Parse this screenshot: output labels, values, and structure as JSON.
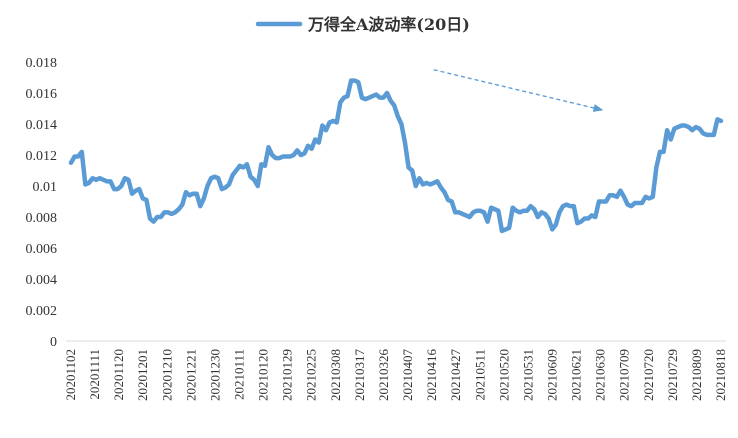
{
  "chart_data": {
    "type": "line",
    "title": "",
    "xlabel": "",
    "ylabel": "",
    "ylim": [
      0,
      0.018
    ],
    "y_ticks": [
      "0",
      "0.002",
      "0.004",
      "0.006",
      "0.008",
      "0.01",
      "0.012",
      "0.014",
      "0.016",
      "0.018"
    ],
    "x_tick_labels": [
      "20201102",
      "20201111",
      "20201120",
      "20201201",
      "20201210",
      "20201221",
      "20201230",
      "20210111",
      "20210120",
      "20210129",
      "20210225",
      "20210308",
      "20210317",
      "20210326",
      "20210407",
      "20210416",
      "20210427",
      "20210511",
      "20210520",
      "20210531",
      "20210609",
      "20210621",
      "20210630",
      "20210709",
      "20210720",
      "20210729",
      "20210809",
      "20210818"
    ],
    "grid": false,
    "legend_position": "top-center",
    "line_color": "#5b9bd5",
    "annotation_arrow": {
      "style": "dashed",
      "color": "#5b9bd5",
      "from": {
        "x": 101,
        "y": 0.0175
      },
      "to": {
        "x": 148,
        "y": 0.0149
      }
    },
    "series": [
      {
        "name": "万得全A波动率(20日)",
        "values": [
          0.0115,
          0.0119,
          0.0119,
          0.0122,
          0.0101,
          0.0102,
          0.0105,
          0.0104,
          0.0105,
          0.0104,
          0.0103,
          0.0103,
          0.0098,
          0.0098,
          0.01,
          0.0105,
          0.0104,
          0.0095,
          0.0097,
          0.0098,
          0.0092,
          0.0091,
          0.0079,
          0.0077,
          0.008,
          0.008,
          0.0083,
          0.0083,
          0.0082,
          0.0083,
          0.0085,
          0.0088,
          0.0096,
          0.0094,
          0.0095,
          0.0095,
          0.0087,
          0.0092,
          0.01,
          0.0105,
          0.0106,
          0.0105,
          0.0098,
          0.0099,
          0.0101,
          0.0107,
          0.011,
          0.0113,
          0.0112,
          0.0114,
          0.0106,
          0.0104,
          0.01,
          0.0114,
          0.0113,
          0.0125,
          0.012,
          0.0118,
          0.0118,
          0.0119,
          0.0119,
          0.0119,
          0.012,
          0.0123,
          0.012,
          0.0121,
          0.0126,
          0.0124,
          0.013,
          0.0128,
          0.0139,
          0.0136,
          0.0141,
          0.0142,
          0.0141,
          0.0154,
          0.0157,
          0.0158,
          0.0168,
          0.0168,
          0.0167,
          0.0157,
          0.0156,
          0.0157,
          0.0158,
          0.0159,
          0.0157,
          0.0157,
          0.016,
          0.0155,
          0.0152,
          0.0145,
          0.014,
          0.0128,
          0.0112,
          0.011,
          0.01,
          0.0105,
          0.0101,
          0.0102,
          0.0101,
          0.0102,
          0.0103,
          0.0099,
          0.0096,
          0.0091,
          0.009,
          0.0083,
          0.0083,
          0.0082,
          0.0081,
          0.008,
          0.0083,
          0.0084,
          0.0084,
          0.0083,
          0.0077,
          0.0086,
          0.0085,
          0.0084,
          0.0071,
          0.0072,
          0.0073,
          0.0086,
          0.0084,
          0.0083,
          0.0084,
          0.0084,
          0.0087,
          0.0085,
          0.008,
          0.0083,
          0.0082,
          0.0079,
          0.0072,
          0.0075,
          0.0083,
          0.0087,
          0.0088,
          0.0087,
          0.0087,
          0.0076,
          0.0077,
          0.0079,
          0.0079,
          0.0081,
          0.008,
          0.009,
          0.009,
          0.009,
          0.0094,
          0.0094,
          0.0093,
          0.0097,
          0.0093,
          0.0088,
          0.0087,
          0.0089,
          0.0089,
          0.0089,
          0.0093,
          0.0092,
          0.0093,
          0.0112,
          0.0122,
          0.0122,
          0.0136,
          0.013,
          0.0137,
          0.0138,
          0.0139,
          0.0139,
          0.0138,
          0.0136,
          0.0138,
          0.0137,
          0.0134,
          0.0133,
          0.0133,
          0.0133,
          0.0143,
          0.0142
        ]
      }
    ]
  }
}
